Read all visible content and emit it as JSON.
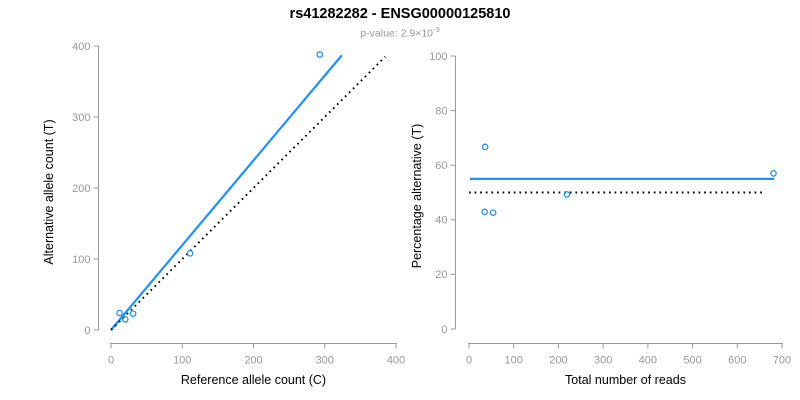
{
  "header": {
    "title": "rs41282282 - ENSG00000125810",
    "subtitle_prefix": "p-value: ",
    "subtitle_value": "2.9×10",
    "subtitle_exponent": "-3"
  },
  "colors": {
    "accent_blue": "#1E90FF",
    "dotted_black": "#000000",
    "tick_label_gray": "#999999",
    "axis_line_gray": "#9B9B9B",
    "axis_title_black": "#000000"
  },
  "chart_data": [
    {
      "type": "scatter",
      "name": "allele-counts-plot",
      "xlabel": "Reference allele count (C)",
      "ylabel": "Alternative allele count (T)",
      "xlim": [
        0,
        400
      ],
      "ylim": [
        0,
        400
      ],
      "xticks": [
        0,
        100,
        200,
        300,
        400
      ],
      "yticks": [
        0,
        100,
        200,
        300,
        400
      ],
      "grid": false,
      "points": [
        [
          12,
          24
        ],
        [
          20,
          15
        ],
        [
          31,
          23
        ],
        [
          111,
          108
        ],
        [
          293,
          388
        ]
      ],
      "lines": [
        {
          "name": "regression-line",
          "style": "solid",
          "color": "#1E90FF",
          "x1": 0,
          "y1": 0,
          "x2": 324,
          "y2": 387
        },
        {
          "name": "identity-line",
          "style": "dotted",
          "color": "#000000",
          "x1": 0,
          "y1": 0,
          "x2": 385,
          "y2": 385
        }
      ]
    },
    {
      "type": "scatter",
      "name": "percentage-vs-reads-plot",
      "xlabel": "Total number of reads",
      "ylabel": "Percentage alternative (T)",
      "xlim": [
        0,
        700
      ],
      "ylim": [
        0,
        100
      ],
      "xticks": [
        0,
        100,
        200,
        300,
        400,
        500,
        600,
        700
      ],
      "yticks": [
        0,
        20,
        40,
        60,
        80,
        100
      ],
      "grid": false,
      "points": [
        [
          36,
          66.7
        ],
        [
          35,
          42.9
        ],
        [
          54,
          42.6
        ],
        [
          219,
          49.3
        ],
        [
          681,
          57.0
        ]
      ],
      "lines": [
        {
          "name": "mean-percentage-line",
          "style": "solid",
          "color": "#1E90FF",
          "x1": 2,
          "y1": 55,
          "x2": 682,
          "y2": 55
        },
        {
          "name": "expected-50-percent-line",
          "style": "dotted",
          "color": "#000000",
          "x1": 0,
          "y1": 50,
          "x2": 664,
          "y2": 50
        }
      ]
    }
  ]
}
